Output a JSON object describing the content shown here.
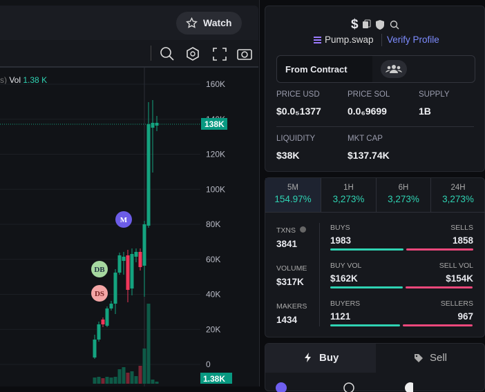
{
  "header": {
    "watch_button": "Watch"
  },
  "chart": {
    "legend_tail": "s)",
    "vol_label": "Vol",
    "vol_value": "1.38 K",
    "yticks": [
      "160K",
      "140K",
      "120K",
      "100K",
      "80K",
      "60K",
      "40K",
      "20K",
      "0"
    ],
    "price_tag": "138K",
    "volume_tag": "1.38K",
    "markers": [
      "M",
      "DB",
      "DS"
    ]
  },
  "token": {
    "symbol": "$",
    "dex": "Pump.swap",
    "verify": "Verify Profile",
    "contract_button": "From Contract"
  },
  "stats": [
    {
      "label": "PRICE USD",
      "value": "$0.0₅1377"
    },
    {
      "label": "PRICE SOL",
      "value": "0.0₆9699"
    },
    {
      "label": "SUPPLY",
      "value": "1B"
    },
    {
      "label": "LIQUIDITY",
      "value": "$38K"
    },
    {
      "label": "MKT CAP",
      "value": "$137.74K"
    }
  ],
  "timeframes": [
    {
      "label": "5M",
      "change": "154.97%"
    },
    {
      "label": "1H",
      "change": "3,273%"
    },
    {
      "label": "6H",
      "change": "3,273%"
    },
    {
      "label": "24H",
      "change": "3,273%"
    }
  ],
  "activity": [
    {
      "label": "TXNS",
      "value": "3841",
      "left_label": "BUYS",
      "left_value": "1983",
      "right_label": "SELLS",
      "right_value": "1858"
    },
    {
      "label": "VOLUME",
      "value": "$317K",
      "left_label": "BUY VOL",
      "left_value": "$162K",
      "right_label": "SELL VOL",
      "right_value": "$154K"
    },
    {
      "label": "MAKERS",
      "value": "1434",
      "left_label": "BUYERS",
      "left_value": "1121",
      "right_label": "SELLERS",
      "right_value": "967"
    }
  ],
  "trade": {
    "buy": "Buy",
    "sell": "Sell"
  }
}
